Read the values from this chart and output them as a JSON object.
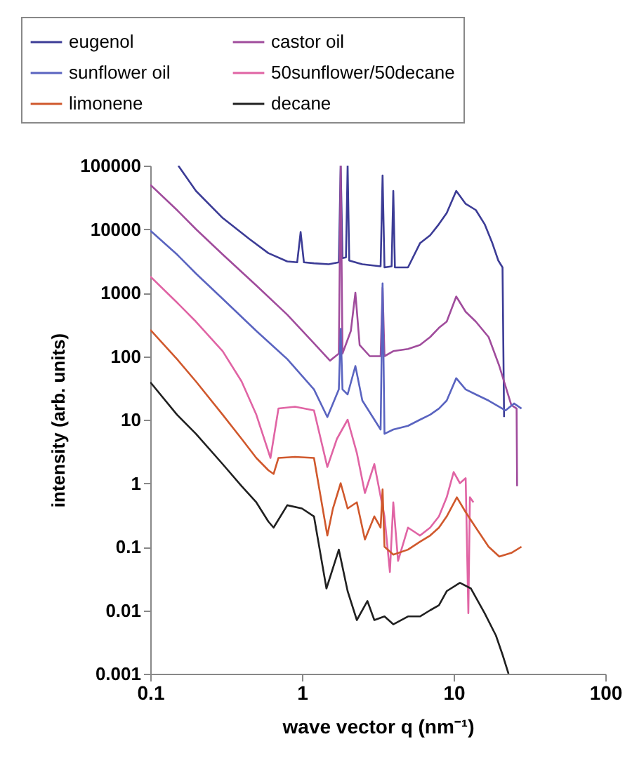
{
  "chart_data": {
    "type": "line",
    "xlabel": "wave vector q (nm⁻¹)",
    "ylabel": "intensity (arb. units)",
    "log": "xy",
    "xlim": [
      0.1,
      100
    ],
    "ylim": [
      0.001,
      100000
    ],
    "xticks": [
      0.1,
      1,
      10,
      100
    ],
    "yticks": [
      0.001,
      0.01,
      0.1,
      1,
      10,
      100,
      1000,
      10000,
      100000
    ],
    "grid": false,
    "legend": "top",
    "series": [
      {
        "name": "eugenol",
        "color": "#3c3c96",
        "x": [
          0.153,
          0.2,
          0.3,
          0.45,
          0.6,
          0.8,
          0.93,
          0.98,
          1.03,
          1.2,
          1.5,
          1.75,
          1.8,
          1.85,
          1.95,
          2.0,
          2.05,
          2.5,
          3.3,
          3.4,
          3.5,
          3.9,
          4.0,
          4.1,
          5,
          6,
          7,
          8,
          9,
          10.4,
          12,
          14,
          16,
          18,
          19.7,
          21,
          21.5
        ],
        "values": [
          100000,
          40000,
          15000,
          7000,
          4200,
          3100,
          3000,
          9000,
          3000,
          2900,
          2800,
          3000,
          100000,
          3500,
          3600,
          100000,
          3200,
          2800,
          2600,
          70000,
          2500,
          2600,
          40000,
          2500,
          2500,
          6000,
          8000,
          12000,
          18000,
          40000,
          25000,
          20000,
          12000,
          6000,
          3200,
          2500,
          11
        ]
      },
      {
        "name": "castor oil",
        "color": "#a04c9c",
        "x": [
          0.1,
          0.15,
          0.2,
          0.3,
          0.5,
          0.8,
          1.2,
          1.53,
          1.75,
          1.8,
          1.85,
          2.1,
          2.25,
          2.4,
          2.8,
          3.3,
          3.4,
          3.5,
          4,
          5,
          6,
          7,
          8,
          9,
          10.4,
          12,
          14,
          17,
          20,
          24,
          26,
          26.2
        ],
        "values": [
          50000,
          20000,
          10000,
          4000,
          1300,
          450,
          160,
          85,
          110,
          100000,
          110,
          250,
          1000,
          150,
          100,
          100,
          1200,
          100,
          120,
          130,
          150,
          200,
          280,
          350,
          870,
          500,
          350,
          200,
          70,
          17,
          15,
          0.9
        ]
      },
      {
        "name": "sunflower oil",
        "color": "#5a64c0",
        "x": [
          0.1,
          0.15,
          0.2,
          0.3,
          0.5,
          0.8,
          1.2,
          1.47,
          1.75,
          1.8,
          1.85,
          2.0,
          2.25,
          2.5,
          3.3,
          3.4,
          3.5,
          4,
          5,
          6,
          7,
          8,
          9,
          10.4,
          12,
          14,
          17,
          22,
          25,
          28
        ],
        "values": [
          9500,
          4000,
          2000,
          800,
          250,
          90,
          30,
          11,
          30,
          270,
          30,
          25,
          70,
          20,
          7,
          1400,
          6,
          7,
          8,
          10,
          12,
          15,
          20,
          45,
          30,
          25,
          20,
          14,
          18,
          15
        ]
      },
      {
        "name": "50sunflower/50decane",
        "color": "#e064a4",
        "x": [
          0.1,
          0.15,
          0.2,
          0.3,
          0.4,
          0.5,
          0.62,
          0.7,
          0.9,
          1.2,
          1.47,
          1.7,
          2.0,
          2.3,
          2.6,
          3.0,
          3.5,
          3.8,
          4.0,
          4.3,
          5,
          6,
          7,
          8,
          9,
          10,
          11,
          12,
          12.5,
          12.8,
          13.5
        ],
        "values": [
          1800,
          700,
          350,
          120,
          40,
          12,
          2.5,
          15,
          16,
          14,
          1.8,
          5,
          10,
          3,
          0.7,
          2,
          0.3,
          0.04,
          0.5,
          0.06,
          0.2,
          0.15,
          0.2,
          0.3,
          0.6,
          1.5,
          1.0,
          1.2,
          0.009,
          0.6,
          0.5
        ]
      },
      {
        "name": "limonene",
        "color": "#d0582c",
        "x": [
          0.1,
          0.15,
          0.2,
          0.3,
          0.4,
          0.5,
          0.6,
          0.65,
          0.7,
          0.9,
          1.2,
          1.47,
          1.6,
          1.8,
          2.0,
          2.3,
          2.6,
          3.0,
          3.3,
          3.4,
          3.5,
          4,
          5,
          6,
          7,
          8,
          9,
          10.5,
          12,
          14,
          17,
          20,
          24,
          28
        ],
        "values": [
          260,
          90,
          40,
          12,
          5,
          2.5,
          1.6,
          1.4,
          2.5,
          2.6,
          2.5,
          0.15,
          0.4,
          1.0,
          0.4,
          0.5,
          0.13,
          0.3,
          0.2,
          0.8,
          0.1,
          0.075,
          0.09,
          0.12,
          0.15,
          0.2,
          0.3,
          0.6,
          0.35,
          0.2,
          0.1,
          0.07,
          0.08,
          0.1
        ]
      },
      {
        "name": "decane",
        "color": "#202020",
        "x": [
          0.1,
          0.15,
          0.2,
          0.3,
          0.4,
          0.5,
          0.6,
          0.65,
          0.8,
          1.0,
          1.2,
          1.45,
          1.75,
          2.0,
          2.3,
          2.7,
          3.0,
          3.5,
          4,
          5,
          6,
          7,
          8,
          9,
          11,
          13,
          16,
          19,
          21,
          23
        ],
        "values": [
          39,
          12,
          6,
          2,
          0.9,
          0.5,
          0.25,
          0.2,
          0.45,
          0.4,
          0.3,
          0.022,
          0.09,
          0.02,
          0.007,
          0.014,
          0.007,
          0.008,
          0.006,
          0.008,
          0.008,
          0.01,
          0.012,
          0.02,
          0.027,
          0.022,
          0.009,
          0.004,
          0.002,
          0.001
        ]
      }
    ]
  }
}
